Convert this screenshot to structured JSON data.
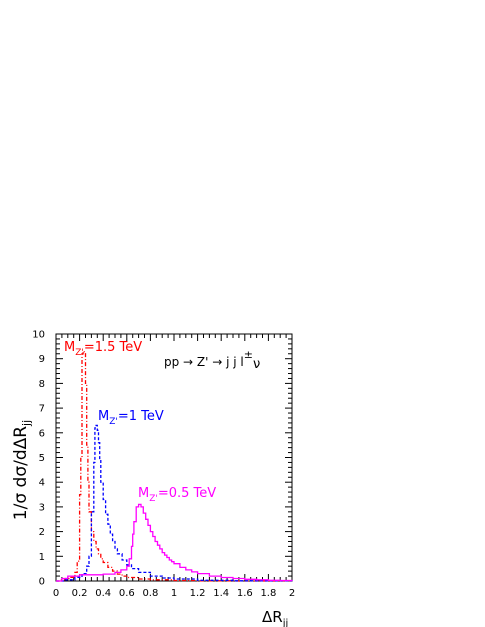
{
  "chart_data": {
    "type": "line",
    "ylabel": "1/σ dσ/dΔR",
    "ylabel_sub": "jj",
    "xlabel": "ΔR",
    "xlabel_sub": "jj",
    "xlim": [
      0,
      2
    ],
    "ylim": [
      0,
      10
    ],
    "x_ticks": [
      "0",
      "0.2",
      "0.4",
      "0.6",
      "0.8",
      "1",
      "1.2",
      "1.4",
      "1.6",
      "1.8",
      "2"
    ],
    "y_ticks": [
      "0",
      "1",
      "2",
      "3",
      "4",
      "5",
      "6",
      "7",
      "8",
      "9",
      "10"
    ],
    "grid": false,
    "process_label": {
      "main": "pp → Z' → j j l",
      "sup": "±",
      "tail": "ν"
    },
    "series": [
      {
        "name": "M_Z'=1.5 TeV",
        "label_main": "M",
        "label_sub": "Z'",
        "label_tail": "=1.5 TeV",
        "color": "#ff0000",
        "style": "dash-dot",
        "x": [
          0.0,
          0.04,
          0.08,
          0.12,
          0.16,
          0.18,
          0.2,
          0.21,
          0.22,
          0.23,
          0.24,
          0.25,
          0.26,
          0.27,
          0.28,
          0.3,
          0.32,
          0.34,
          0.36,
          0.38,
          0.4,
          0.44,
          0.48,
          0.52,
          0.56,
          0.6,
          0.7,
          0.8,
          1.0,
          1.2,
          1.5,
          2.0
        ],
        "y": [
          0.0,
          0.05,
          0.1,
          0.15,
          0.35,
          0.8,
          3.5,
          5.0,
          9.2,
          9.3,
          9.2,
          8.0,
          5.5,
          4.0,
          2.8,
          2.0,
          1.6,
          1.3,
          1.1,
          0.9,
          0.75,
          0.55,
          0.4,
          0.28,
          0.2,
          0.14,
          0.08,
          0.05,
          0.02,
          0.01,
          0.0,
          0.0
        ]
      },
      {
        "name": "M_Z'=1 TeV",
        "label_main": "M",
        "label_sub": "Z'",
        "label_tail": "=1 TeV",
        "color": "#0000ff",
        "style": "dashed",
        "x": [
          0.0,
          0.08,
          0.16,
          0.22,
          0.26,
          0.28,
          0.3,
          0.32,
          0.33,
          0.34,
          0.35,
          0.36,
          0.37,
          0.38,
          0.4,
          0.42,
          0.44,
          0.46,
          0.48,
          0.5,
          0.52,
          0.56,
          0.6,
          0.64,
          0.7,
          0.8,
          0.9,
          1.0,
          1.2,
          1.5,
          2.0
        ],
        "y": [
          0.0,
          0.05,
          0.15,
          0.3,
          0.6,
          1.0,
          2.8,
          4.8,
          6.2,
          6.3,
          6.1,
          5.6,
          4.9,
          4.0,
          3.3,
          2.7,
          2.3,
          1.9,
          1.6,
          1.3,
          1.1,
          0.85,
          0.65,
          0.5,
          0.35,
          0.2,
          0.12,
          0.08,
          0.03,
          0.01,
          0.0
        ]
      },
      {
        "name": "M_Z'=0.5 TeV",
        "label_main": "M",
        "label_sub": "Z'",
        "label_tail": "=0.5 TeV",
        "color": "#ff00ff",
        "style": "solid",
        "x": [
          0.0,
          0.05,
          0.1,
          0.2,
          0.3,
          0.4,
          0.5,
          0.55,
          0.6,
          0.62,
          0.64,
          0.65,
          0.66,
          0.68,
          0.7,
          0.72,
          0.74,
          0.76,
          0.78,
          0.8,
          0.82,
          0.84,
          0.86,
          0.88,
          0.9,
          0.92,
          0.94,
          0.96,
          0.98,
          1.0,
          1.05,
          1.1,
          1.15,
          1.2,
          1.3,
          1.4,
          1.5,
          1.6,
          1.7,
          1.8,
          1.9,
          2.0
        ],
        "y": [
          0.0,
          0.1,
          0.2,
          0.25,
          0.25,
          0.28,
          0.35,
          0.45,
          0.6,
          0.9,
          1.4,
          1.9,
          2.4,
          3.0,
          3.1,
          3.0,
          2.75,
          2.5,
          2.25,
          2.0,
          1.8,
          1.6,
          1.45,
          1.3,
          1.15,
          1.05,
          0.95,
          0.85,
          0.78,
          0.7,
          0.55,
          0.45,
          0.37,
          0.3,
          0.2,
          0.14,
          0.1,
          0.07,
          0.05,
          0.03,
          0.02,
          0.01
        ]
      }
    ]
  }
}
